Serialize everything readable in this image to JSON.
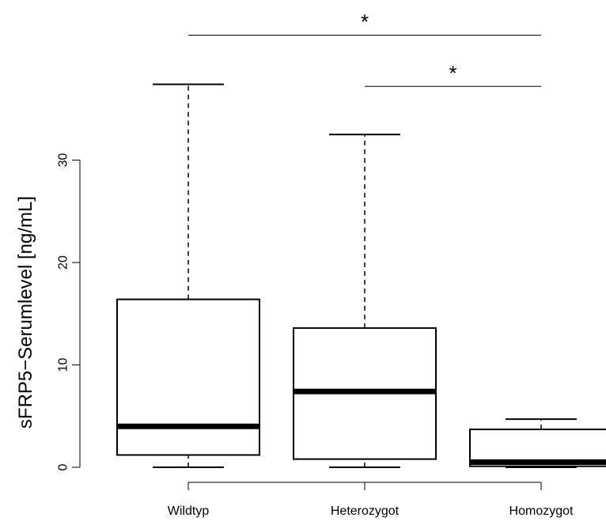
{
  "chart_data": {
    "type": "boxplot",
    "ylabel": "sFRP5−Serumlevel [ng/mL]",
    "ylim": [
      0,
      40
    ],
    "yticks": [
      0,
      10,
      20,
      30
    ],
    "categories": [
      "Wildtyp",
      "Heterozygot",
      "Homozygot"
    ],
    "boxes": [
      {
        "category": "Wildtyp",
        "whisker_low": 0.0,
        "q1": 1.2,
        "median": 4.0,
        "q3": 16.4,
        "whisker_high": 37.4
      },
      {
        "category": "Heterozygot",
        "whisker_low": 0.0,
        "q1": 0.8,
        "median": 7.4,
        "q3": 13.6,
        "whisker_high": 32.5
      },
      {
        "category": "Homozygot",
        "whisker_low": 0.0,
        "q1": 0.1,
        "median": 0.5,
        "q3": 3.7,
        "whisker_high": 4.7
      }
    ],
    "significance": [
      {
        "from": "Wildtyp",
        "to": "Homozygot",
        "label": "*",
        "y": 42.2
      },
      {
        "from": "Heterozygot",
        "to": "Homozygot",
        "label": "*",
        "y": 37.2
      }
    ]
  }
}
